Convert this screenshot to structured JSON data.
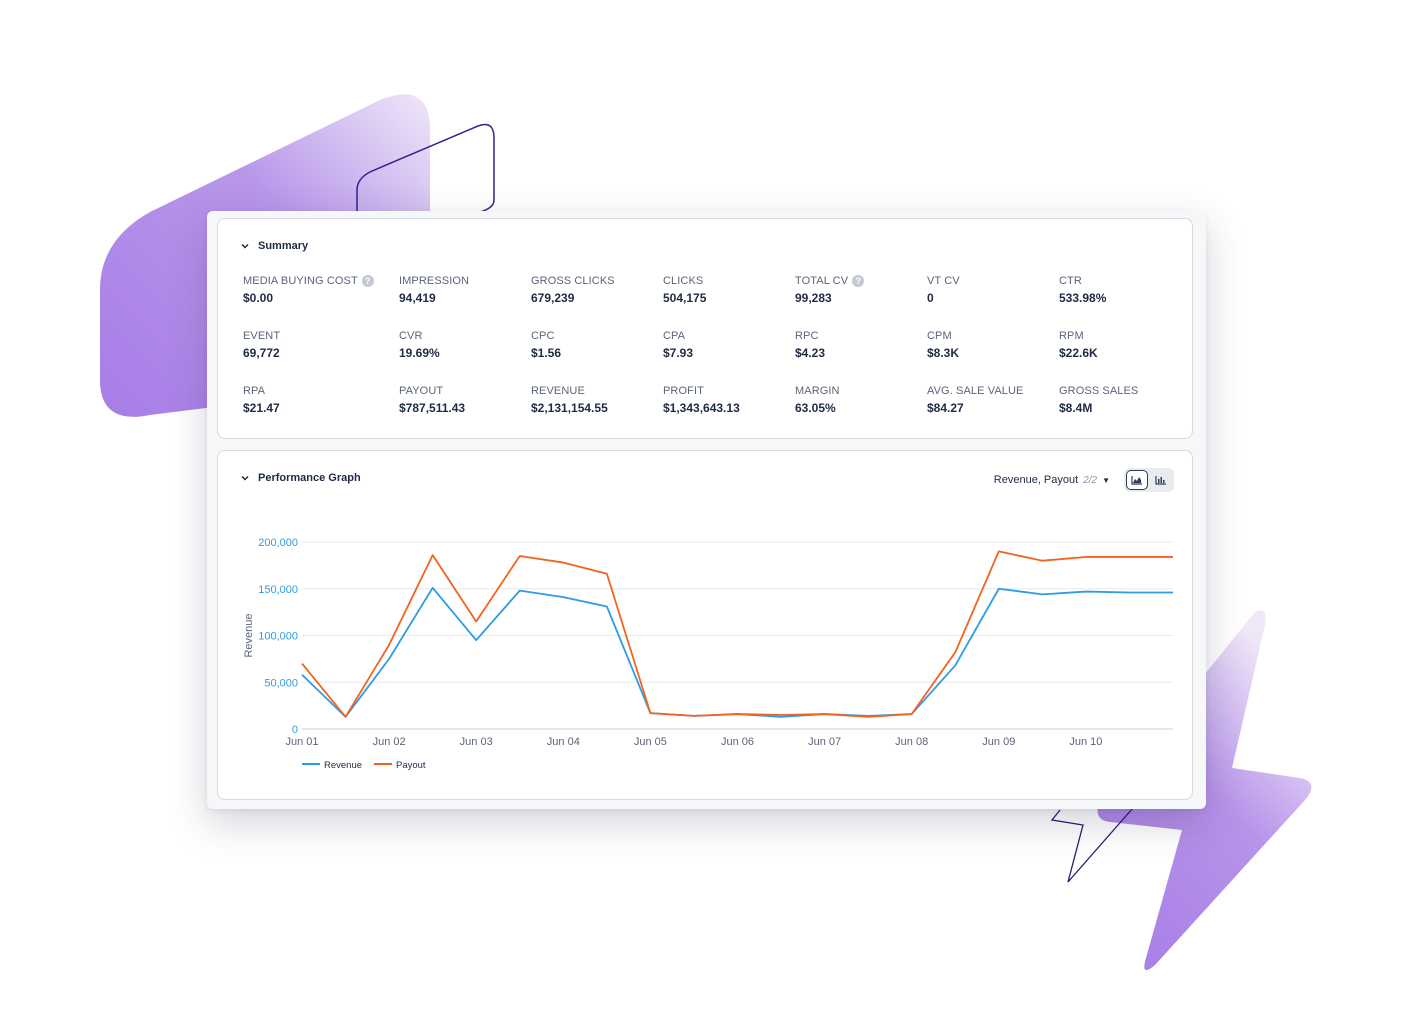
{
  "summary": {
    "title": "Summary",
    "metrics": [
      {
        "label": "MEDIA BUYING COST",
        "value": "$0.00",
        "help": true
      },
      {
        "label": "IMPRESSION",
        "value": "94,419"
      },
      {
        "label": "GROSS CLICKS",
        "value": "679,239"
      },
      {
        "label": "CLICKS",
        "value": "504,175"
      },
      {
        "label": "TOTAL CV",
        "value": "99,283",
        "help": true
      },
      {
        "label": "VT CV",
        "value": "0"
      },
      {
        "label": "CTR",
        "value": "533.98%"
      },
      {
        "label": "EVENT",
        "value": "69,772"
      },
      {
        "label": "CVR",
        "value": "19.69%"
      },
      {
        "label": "CPC",
        "value": "$1.56"
      },
      {
        "label": "CPA",
        "value": "$7.93"
      },
      {
        "label": "RPC",
        "value": "$4.23"
      },
      {
        "label": "CPM",
        "value": "$8.3K"
      },
      {
        "label": "RPM",
        "value": "$22.6K"
      },
      {
        "label": "RPA",
        "value": "$21.47"
      },
      {
        "label": "PAYOUT",
        "value": "$787,511.43"
      },
      {
        "label": "REVENUE",
        "value": "$2,131,154.55"
      },
      {
        "label": "PROFIT",
        "value": "$1,343,643.13"
      },
      {
        "label": "MARGIN",
        "value": "63.05%"
      },
      {
        "label": "AVG. SALE VALUE",
        "value": "$84.27"
      },
      {
        "label": "GROSS SALES",
        "value": "$8.4M"
      }
    ]
  },
  "graph": {
    "title": "Performance Graph",
    "series_selector": {
      "label": "Revenue, Payout",
      "count": "2/2"
    },
    "view_toggle": [
      {
        "icon": "area-chart-icon",
        "active": true
      },
      {
        "icon": "bar-chart-icon",
        "active": false
      }
    ]
  },
  "chart_data": {
    "type": "line",
    "ylabel": "Revenue",
    "xlabel": "",
    "ylim": [
      0,
      200000
    ],
    "yticks": [
      "200,000",
      "150,000",
      "100,000",
      "50,000",
      "0"
    ],
    "ytick_values": [
      200000,
      150000,
      100000,
      50000,
      0
    ],
    "xticks": [
      "Jun 01",
      "Jun 02",
      "Jun 03",
      "Jun 04",
      "Jun 05",
      "Jun 06",
      "Jun 07",
      "Jun 08",
      "Jun 09",
      "Jun 10"
    ],
    "x": [
      0,
      0.5,
      1,
      1.5,
      2,
      2.5,
      3,
      3.5,
      4,
      4.5,
      5,
      5.5,
      6,
      6.5,
      7,
      7.5,
      8,
      8.5,
      9,
      9.5,
      10
    ],
    "series": [
      {
        "name": "Revenue",
        "color": "#2e9be6",
        "values": [
          58000,
          13000,
          75000,
          151000,
          95000,
          148000,
          141000,
          131000,
          17000,
          14000,
          16000,
          13000,
          16000,
          14000,
          16000,
          68000,
          150000,
          144000,
          147000,
          146000,
          146000
        ]
      },
      {
        "name": "Payout",
        "color": "#f2641e",
        "values": [
          70000,
          13000,
          90000,
          186000,
          115000,
          185000,
          178000,
          166000,
          17000,
          14000,
          16000,
          15000,
          16000,
          13000,
          16000,
          82000,
          190000,
          180000,
          184000,
          184000,
          184000
        ]
      }
    ],
    "legend_position": "bottom-left",
    "grid": true
  },
  "colors": {
    "accent": "#2f3b57",
    "purple": "#a97ee8",
    "revenue": "#2e9be6",
    "payout": "#f2641e"
  }
}
